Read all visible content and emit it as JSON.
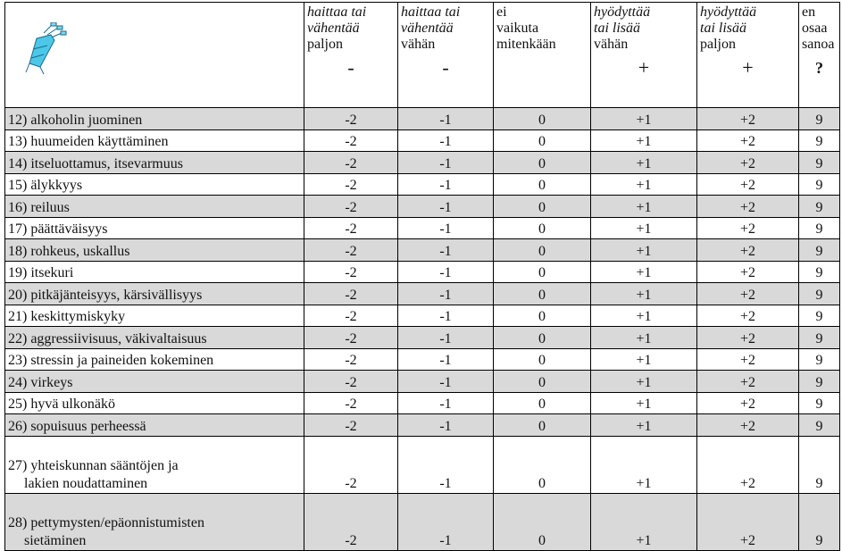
{
  "table": {
    "headers": [
      {
        "lines": [
          {
            "text": "haittaa tai",
            "italic": true
          },
          {
            "text": "vähentää",
            "italic": true
          },
          {
            "text": "paljon",
            "italic": false
          }
        ],
        "symbol": "-"
      },
      {
        "lines": [
          {
            "text": "haittaa tai",
            "italic": true
          },
          {
            "text": "vähentää",
            "italic": true
          },
          {
            "text": "vähän",
            "italic": false
          }
        ],
        "symbol": "-"
      },
      {
        "lines": [
          {
            "text": "ei",
            "italic": false
          },
          {
            "text": "vaikuta",
            "italic": false
          },
          {
            "text": "mitenkään",
            "italic": false
          }
        ]
      },
      {
        "lines": [
          {
            "text": "hyödyttää",
            "italic": true
          },
          {
            "text": "tai lisää",
            "italic": true
          },
          {
            "text": "vähän",
            "italic": false
          }
        ],
        "symbol": "+"
      },
      {
        "lines": [
          {
            "text": "hyödyttää",
            "italic": true
          },
          {
            "text": "tai lisää",
            "italic": true
          },
          {
            "text": "paljon",
            "italic": false
          }
        ],
        "symbol": "+"
      },
      {
        "lines": [
          {
            "text": "en",
            "italic": false
          },
          {
            "text": "osaa",
            "italic": false
          },
          {
            "text": "sanoa",
            "italic": false
          }
        ],
        "symbol": "?"
      }
    ],
    "rows": [
      {
        "label": [
          "12) alkoholin juominen"
        ],
        "values": [
          "-2",
          "-1",
          "0",
          "+1",
          "+2",
          "9"
        ]
      },
      {
        "label": [
          "13) huumeiden käyttäminen"
        ],
        "values": [
          "-2",
          "-1",
          "0",
          "+1",
          "+2",
          "9"
        ]
      },
      {
        "label": [
          "14) itseluottamus, itsevarmuus"
        ],
        "values": [
          "-2",
          "-1",
          "0",
          "+1",
          "+2",
          "9"
        ]
      },
      {
        "label": [
          "15) älykkyys"
        ],
        "values": [
          "-2",
          "-1",
          "0",
          "+1",
          "+2",
          "9"
        ]
      },
      {
        "label": [
          "16) reiluus"
        ],
        "values": [
          "-2",
          "-1",
          "0",
          "+1",
          "+2",
          "9"
        ]
      },
      {
        "label": [
          "17) päättäväisyys"
        ],
        "values": [
          "-2",
          "-1",
          "0",
          "+1",
          "+2",
          "9"
        ]
      },
      {
        "label": [
          "18) rohkeus, uskallus"
        ],
        "values": [
          "-2",
          "-1",
          "0",
          "+1",
          "+2",
          "9"
        ]
      },
      {
        "label": [
          "19) itsekuri"
        ],
        "values": [
          "-2",
          "-1",
          "0",
          "+1",
          "+2",
          "9"
        ]
      },
      {
        "label": [
          "20) pitkäjänteisyys, kärsivällisyys"
        ],
        "values": [
          "-2",
          "-1",
          "0",
          "+1",
          "+2",
          "9"
        ]
      },
      {
        "label": [
          "21) keskittymiskyky"
        ],
        "values": [
          "-2",
          "-1",
          "0",
          "+1",
          "+2",
          "9"
        ]
      },
      {
        "label": [
          "22) aggressiivisuus, väkivaltaisuus"
        ],
        "values": [
          "-2",
          "-1",
          "0",
          "+1",
          "+2",
          "9"
        ]
      },
      {
        "label": [
          "23) stressin ja paineiden kokeminen"
        ],
        "values": [
          "-2",
          "-1",
          "0",
          "+1",
          "+2",
          "9"
        ]
      },
      {
        "label": [
          "24) virkeys"
        ],
        "values": [
          "-2",
          "-1",
          "0",
          "+1",
          "+2",
          "9"
        ]
      },
      {
        "label": [
          "25) hyvä ulkonäkö"
        ],
        "values": [
          "-2",
          "-1",
          "0",
          "+1",
          "+2",
          "9"
        ]
      },
      {
        "label": [
          "26) sopuisuus perheessä"
        ],
        "values": [
          "-2",
          "-1",
          "0",
          "+1",
          "+2",
          "9"
        ]
      },
      {
        "label": [
          "27) yhteiskunnan sääntöjen ja",
          "lakien noudattaminen"
        ],
        "values": [
          "-2",
          "-1",
          "0",
          "+1",
          "+2",
          "9"
        ]
      },
      {
        "label": [
          "28) pettymysten/epäonnistumisten",
          "sietäminen"
        ],
        "values": [
          "-2",
          "-1",
          "0",
          "+1",
          "+2",
          "9"
        ]
      }
    ]
  }
}
